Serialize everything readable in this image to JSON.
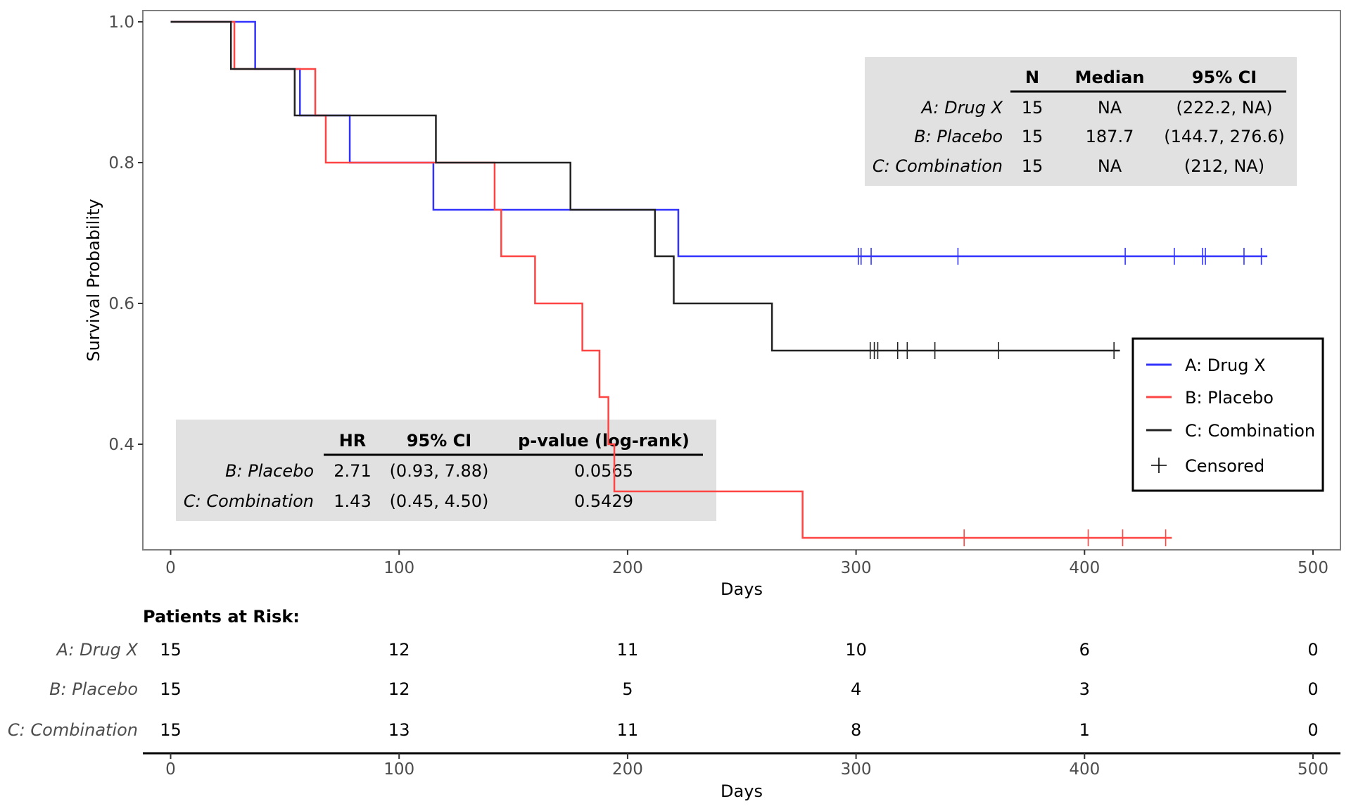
{
  "chart_data": {
    "type": "line",
    "subtype": "kaplan-meier",
    "title": "",
    "xlabel": "Days",
    "ylabel": "Survival Probability",
    "xlim": [
      0,
      500
    ],
    "ylim": [
      0.25,
      1.0
    ],
    "xticks": [
      0,
      100,
      200,
      300,
      400,
      500
    ],
    "yticks": [
      0.4,
      0.6,
      0.8,
      1.0
    ],
    "ytick_labels": [
      "0.4",
      "0.6",
      "0.8",
      "1.0"
    ],
    "grid": false,
    "legend_position": "right",
    "legend": [
      {
        "label": "A: Drug X",
        "kind": "line",
        "series": 0
      },
      {
        "label": "B: Placebo",
        "kind": "line",
        "series": 1
      },
      {
        "label": "C: Combination",
        "kind": "line",
        "series": 2
      },
      {
        "label": "Censored",
        "kind": "plus"
      }
    ],
    "series": [
      {
        "name": "A: Drug X",
        "color": "#3333ff",
        "steps": [
          [
            0,
            1.0
          ],
          [
            37,
            0.933
          ],
          [
            56.6,
            0.867
          ],
          [
            78.4,
            0.8
          ],
          [
            115,
            0.733
          ],
          [
            222.2,
            0.667
          ]
        ],
        "end": 480,
        "censored": [
          301,
          302.2,
          306.6,
          344.6,
          417.8,
          439.3,
          451.7,
          452.9,
          469.8,
          477.4
        ]
      },
      {
        "name": "B: Placebo",
        "color": "#ff4444",
        "steps": [
          [
            0,
            1.0
          ],
          [
            27.9,
            0.933
          ],
          [
            63.3,
            0.867
          ],
          [
            67.9,
            0.8
          ],
          [
            141.8,
            0.733
          ],
          [
            144.7,
            0.667
          ],
          [
            159.5,
            0.6
          ],
          [
            180.2,
            0.533
          ],
          [
            187.7,
            0.467
          ],
          [
            191.6,
            0.4
          ],
          [
            194.2,
            0.333
          ],
          [
            276.6,
            0.267
          ]
        ],
        "end": 438.2,
        "censored": [
          347.3,
          401.6,
          416.7,
          435.5
        ]
      },
      {
        "name": "C: Combination",
        "color": "#222222",
        "steps": [
          [
            0,
            1.0
          ],
          [
            26.4,
            0.933
          ],
          [
            54.3,
            0.867
          ],
          [
            116.1,
            0.8
          ],
          [
            175,
            0.733
          ],
          [
            212,
            0.667
          ],
          [
            220.2,
            0.6
          ],
          [
            263.2,
            0.533
          ]
        ],
        "end": 415.5,
        "censored": [
          306.2,
          308,
          309.5,
          318.2,
          322.4,
          334.5,
          362.4,
          412.9
        ]
      }
    ],
    "median_table": {
      "headers": [
        "N",
        "Median",
        "95% CI"
      ],
      "rows": [
        {
          "label": "A: Drug X",
          "n": "15",
          "median": "NA",
          "ci": "(222.2, NA)"
        },
        {
          "label": "B: Placebo",
          "n": "15",
          "median": "187.7",
          "ci": "(144.7, 276.6)"
        },
        {
          "label": "C: Combination",
          "n": "15",
          "median": "NA",
          "ci": "(212, NA)"
        }
      ]
    },
    "hr_table": {
      "headers": [
        "HR",
        "95% CI",
        "p-value (log-rank)"
      ],
      "rows": [
        {
          "label": "B: Placebo",
          "hr": "2.71",
          "ci": "(0.93, 7.88)",
          "p": "0.0565"
        },
        {
          "label": "C: Combination",
          "hr": "1.43",
          "ci": "(0.45, 4.50)",
          "p": "0.5429"
        }
      ]
    },
    "risk_table": {
      "title": "Patients at Risk:",
      "times": [
        0,
        100,
        200,
        300,
        400,
        500
      ],
      "xlabel": "Days",
      "rows": [
        {
          "label": "A: Drug X",
          "values": [
            15,
            12,
            11,
            10,
            6,
            0
          ]
        },
        {
          "label": "B: Placebo",
          "values": [
            15,
            12,
            5,
            4,
            3,
            0
          ]
        },
        {
          "label": "C: Combination",
          "values": [
            15,
            13,
            11,
            8,
            1,
            0
          ]
        }
      ]
    }
  }
}
